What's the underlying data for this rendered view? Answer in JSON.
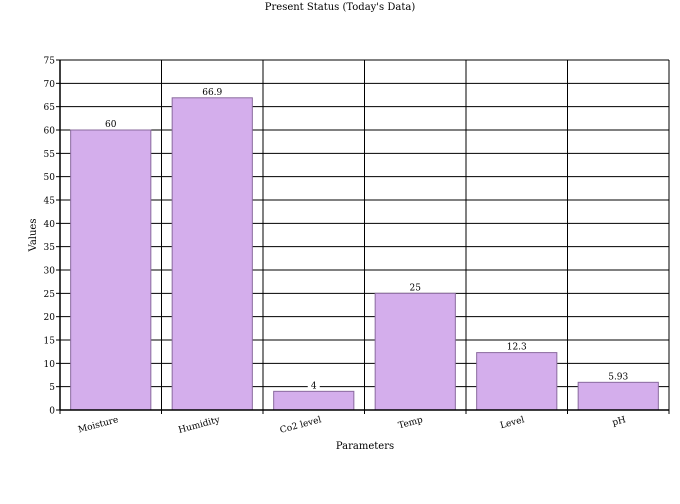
{
  "chart_data": {
    "type": "bar",
    "title": "Present Status (Today's Data)",
    "xlabel": "Parameters",
    "ylabel": "Values",
    "categories": [
      "Moisture",
      "Humidity",
      "Co2 level",
      "Temp",
      "Level",
      "pH"
    ],
    "values": [
      60,
      66.9,
      4,
      25,
      12.3,
      5.93
    ],
    "value_labels": [
      "60",
      "66.9",
      "4",
      "25",
      "12.3",
      "5.93"
    ],
    "ylim": [
      0,
      75
    ],
    "yticks": [
      0,
      5,
      10,
      15,
      20,
      25,
      30,
      35,
      40,
      45,
      50,
      55,
      60,
      65,
      70,
      75
    ],
    "grid": true,
    "bar_color": "#d4aeec",
    "bar_edge_color": "#8a6a9e",
    "axis_color": "#000000"
  }
}
